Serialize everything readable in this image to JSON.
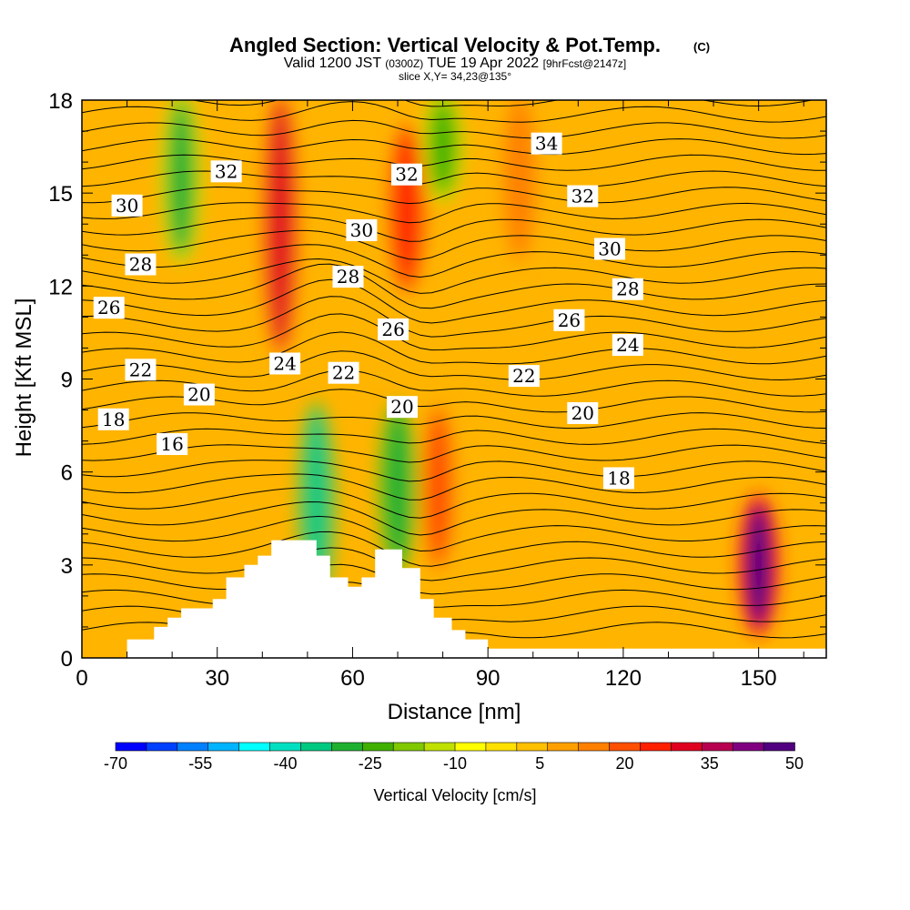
{
  "chart_data": {
    "type": "heatmap",
    "title": "Angled Section: Vertical Velocity & Pot.Temp.",
    "title_mark": "(C)",
    "subtitle_parts": [
      "Valid 1200 JST",
      "(0300Z)",
      "TUE 19 Apr 2022",
      "[9hrFcst@2147z]"
    ],
    "slice_label": "slice X,Y= 34,23@135°",
    "xlabel": "Distance [nm]",
    "ylabel": "Height [Kft MSL]",
    "xlim": [
      0,
      165
    ],
    "ylim": [
      0,
      18
    ],
    "x_ticks": [
      0,
      30,
      60,
      90,
      120,
      150
    ],
    "y_ticks": [
      0,
      3,
      6,
      9,
      12,
      15,
      18
    ],
    "colorbar": {
      "label": "Vertical Velocity [cm/s]",
      "tick_labels": [
        "-70",
        "-55",
        "-40",
        "-25",
        "-10",
        "5",
        "20",
        "35",
        "50"
      ],
      "colors": [
        "#0000ff",
        "#0040ff",
        "#0080ff",
        "#00b4ff",
        "#00ffff",
        "#00e0c0",
        "#00c880",
        "#20b030",
        "#40b000",
        "#80c800",
        "#c0e000",
        "#ffff00",
        "#ffe000",
        "#ffc000",
        "#ffa000",
        "#ff8000",
        "#ff5000",
        "#ff2000",
        "#e00020",
        "#b80050",
        "#800080",
        "#500080"
      ]
    },
    "velocity_features": [
      {
        "x": 22,
        "y_bottom": 13,
        "y_top": 18,
        "w": -28
      },
      {
        "x": 44,
        "y_bottom": 10,
        "y_top": 18,
        "w": 32
      },
      {
        "x": 52,
        "y_bottom": 2,
        "y_top": 8,
        "w": -35
      },
      {
        "x": 72,
        "y_bottom": 12,
        "y_top": 17,
        "w": 28
      },
      {
        "x": 70,
        "y_bottom": 3,
        "y_top": 8,
        "w": -30
      },
      {
        "x": 80,
        "y_bottom": 15,
        "y_top": 18,
        "w": -25
      },
      {
        "x": 79,
        "y_bottom": 3,
        "y_top": 8,
        "w": 22
      },
      {
        "x": 97,
        "y_bottom": 13,
        "y_top": 18,
        "w": 18
      },
      {
        "x": 150,
        "y_bottom": 1,
        "y_top": 5,
        "w": 48
      }
    ],
    "theta_contour_labels": [
      {
        "value": "16",
        "x": 20,
        "y": 6.9
      },
      {
        "value": "18",
        "x": 7,
        "y": 7.7
      },
      {
        "value": "20",
        "x": 26,
        "y": 8.5
      },
      {
        "value": "22",
        "x": 13,
        "y": 9.3
      },
      {
        "value": "24",
        "x": 45,
        "y": 9.5
      },
      {
        "value": "26",
        "x": 6,
        "y": 11.3
      },
      {
        "value": "28",
        "x": 13,
        "y": 12.7
      },
      {
        "value": "30",
        "x": 10,
        "y": 14.6
      },
      {
        "value": "32",
        "x": 32,
        "y": 15.7
      },
      {
        "value": "30",
        "x": 62,
        "y": 13.8
      },
      {
        "value": "28",
        "x": 59,
        "y": 12.3
      },
      {
        "value": "22",
        "x": 58,
        "y": 9.2
      },
      {
        "value": "20",
        "x": 71,
        "y": 8.1
      },
      {
        "value": "26",
        "x": 69,
        "y": 10.6
      },
      {
        "value": "32",
        "x": 72,
        "y": 15.6
      },
      {
        "value": "22",
        "x": 98,
        "y": 9.1
      },
      {
        "value": "34",
        "x": 103,
        "y": 16.6
      },
      {
        "value": "32",
        "x": 111,
        "y": 14.9
      },
      {
        "value": "30",
        "x": 117,
        "y": 13.2
      },
      {
        "value": "28",
        "x": 121,
        "y": 11.9
      },
      {
        "value": "26",
        "x": 108,
        "y": 10.9
      },
      {
        "value": "24",
        "x": 121,
        "y": 10.1
      },
      {
        "value": "20",
        "x": 111,
        "y": 7.9
      },
      {
        "value": "18",
        "x": 119,
        "y": 5.8
      }
    ],
    "terrain": [
      [
        0,
        0
      ],
      [
        10,
        0
      ],
      [
        10,
        0.6
      ],
      [
        16,
        0.6
      ],
      [
        16,
        1.0
      ],
      [
        19,
        1.0
      ],
      [
        19,
        1.3
      ],
      [
        22,
        1.3
      ],
      [
        22,
        1.6
      ],
      [
        29,
        1.6
      ],
      [
        29,
        1.9
      ],
      [
        32,
        1.9
      ],
      [
        32,
        2.6
      ],
      [
        36,
        2.6
      ],
      [
        36,
        3.0
      ],
      [
        39,
        3.0
      ],
      [
        39,
        3.3
      ],
      [
        42,
        3.3
      ],
      [
        42,
        3.8
      ],
      [
        52,
        3.8
      ],
      [
        52,
        3.3
      ],
      [
        55,
        3.3
      ],
      [
        55,
        2.6
      ],
      [
        59,
        2.6
      ],
      [
        59,
        2.3
      ],
      [
        62,
        2.3
      ],
      [
        62,
        2.6
      ],
      [
        65,
        2.6
      ],
      [
        65,
        3.5
      ],
      [
        71,
        3.5
      ],
      [
        71,
        2.9
      ],
      [
        75,
        2.9
      ],
      [
        75,
        1.9
      ],
      [
        78,
        1.9
      ],
      [
        78,
        1.3
      ],
      [
        82,
        1.3
      ],
      [
        82,
        0.9
      ],
      [
        85,
        0.9
      ],
      [
        85,
        0.6
      ],
      [
        90,
        0.6
      ],
      [
        90,
        0.3
      ],
      [
        165,
        0.3
      ],
      [
        165,
        0
      ]
    ]
  }
}
